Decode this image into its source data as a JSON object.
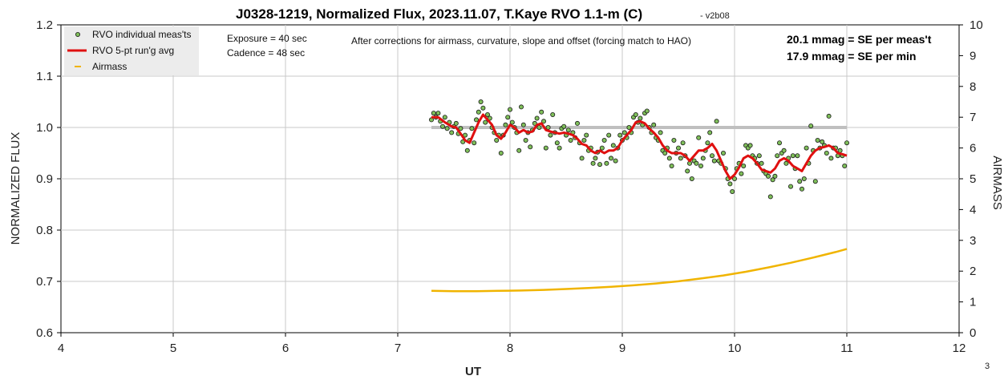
{
  "chart_data": {
    "type": "line",
    "title": "J0328-1219, Normalized Flux, 2023.11.07, T.Kaye RVO 1.1-m (C)",
    "title_suffix": "- v2b08",
    "xlabel": "UT",
    "ylabel": "NORMALIZED FLUX",
    "y2label": "AIRMASS",
    "xlim": [
      4,
      12
    ],
    "ylim": [
      0.6,
      1.2
    ],
    "y2lim": [
      0,
      10
    ],
    "xticks": [
      "4",
      "5",
      "6",
      "7",
      "8",
      "9",
      "10",
      "11",
      "12"
    ],
    "yticks": [
      "0.6",
      "0.7",
      "0.8",
      "0.9",
      "1.0",
      "1.1",
      "1.2"
    ],
    "y2ticks": [
      "0",
      "1",
      "2",
      "3",
      "4",
      "5",
      "6",
      "7",
      "8",
      "9",
      "10"
    ],
    "grid": true,
    "legend_placement": "top-left",
    "annotations": {
      "exposure": "Exposure = 40 sec",
      "cadence": "Cadence = 48 sec",
      "corrections": "After corrections for airmass, curvature, slope and offset (forcing match to HAO)",
      "se_meas": "20.1 mmag = SE per meas't",
      "se_min": "17.9 mmag = SE per min",
      "corner_label": "3"
    },
    "reference_line": {
      "y": 1.0,
      "x_range": [
        7.3,
        11.0
      ],
      "color": "#bfbfbf"
    },
    "series": [
      {
        "name": "RVO individual meas'ts",
        "kind": "scatter",
        "color": "#7fbf5a",
        "points": [
          [
            7.3,
            1.015
          ],
          [
            7.32,
            1.028
          ],
          [
            7.34,
            1.02
          ],
          [
            7.36,
            1.028
          ],
          [
            7.38,
            1.012
          ],
          [
            7.4,
            1.002
          ],
          [
            7.42,
            1.02
          ],
          [
            7.44,
            0.998
          ],
          [
            7.46,
            1.01
          ],
          [
            7.48,
            0.99
          ],
          [
            7.5,
            1.002
          ],
          [
            7.52,
            1.008
          ],
          [
            7.54,
            0.988
          ],
          [
            7.56,
            0.998
          ],
          [
            7.58,
            0.972
          ],
          [
            7.6,
            0.985
          ],
          [
            7.62,
            0.955
          ],
          [
            7.64,
            0.975
          ],
          [
            7.66,
            0.998
          ],
          [
            7.68,
            0.97
          ],
          [
            7.7,
            1.015
          ],
          [
            7.72,
            1.03
          ],
          [
            7.74,
            1.05
          ],
          [
            7.76,
            1.038
          ],
          [
            7.78,
            1.01
          ],
          [
            7.8,
            1.025
          ],
          [
            7.82,
            1.018
          ],
          [
            7.84,
            1.0
          ],
          [
            7.86,
            0.99
          ],
          [
            7.88,
            0.975
          ],
          [
            7.9,
            0.985
          ],
          [
            7.92,
            0.95
          ],
          [
            7.94,
            0.985
          ],
          [
            7.96,
            1.005
          ],
          [
            7.98,
            1.02
          ],
          [
            8.0,
            1.035
          ],
          [
            8.02,
            1.01
          ],
          [
            8.04,
            1.0
          ],
          [
            8.06,
            0.99
          ],
          [
            8.08,
            0.955
          ],
          [
            8.1,
            1.04
          ],
          [
            8.12,
            1.005
          ],
          [
            8.14,
            0.975
          ],
          [
            8.16,
            0.99
          ],
          [
            8.18,
            0.962
          ],
          [
            8.2,
            0.995
          ],
          [
            8.22,
            1.008
          ],
          [
            8.24,
            1.018
          ],
          [
            8.26,
            1.0
          ],
          [
            8.28,
            1.03
          ],
          [
            8.3,
            1.012
          ],
          [
            8.32,
            0.96
          ],
          [
            8.34,
            1.0
          ],
          [
            8.36,
            0.985
          ],
          [
            8.38,
            1.025
          ],
          [
            8.4,
            0.99
          ],
          [
            8.42,
            0.97
          ],
          [
            8.44,
            0.96
          ],
          [
            8.46,
            0.998
          ],
          [
            8.48,
            1.002
          ],
          [
            8.5,
            0.985
          ],
          [
            8.52,
            0.995
          ],
          [
            8.54,
            0.975
          ],
          [
            8.56,
            0.99
          ],
          [
            8.58,
            0.98
          ],
          [
            8.6,
            1.008
          ],
          [
            8.62,
            0.97
          ],
          [
            8.64,
            0.94
          ],
          [
            8.66,
            0.975
          ],
          [
            8.68,
            0.985
          ],
          [
            8.7,
            0.955
          ],
          [
            8.72,
            0.96
          ],
          [
            8.74,
            0.93
          ],
          [
            8.76,
            0.94
          ],
          [
            8.78,
            0.952
          ],
          [
            8.8,
            0.928
          ],
          [
            8.82,
            0.96
          ],
          [
            8.84,
            0.975
          ],
          [
            8.86,
            0.93
          ],
          [
            8.88,
            0.985
          ],
          [
            8.9,
            0.94
          ],
          [
            8.92,
            0.965
          ],
          [
            8.94,
            0.935
          ],
          [
            8.96,
            0.96
          ],
          [
            8.98,
            0.985
          ],
          [
            9.0,
            0.975
          ],
          [
            9.02,
            0.99
          ],
          [
            9.04,
            0.98
          ],
          [
            9.06,
            1.0
          ],
          [
            9.08,
            0.99
          ],
          [
            9.1,
            1.02
          ],
          [
            9.12,
            1.025
          ],
          [
            9.14,
            1.01
          ],
          [
            9.16,
            1.018
          ],
          [
            9.18,
            1.005
          ],
          [
            9.2,
            1.028
          ],
          [
            9.22,
            1.032
          ],
          [
            9.24,
            1.0
          ],
          [
            9.26,
            0.99
          ],
          [
            9.28,
            1.005
          ],
          [
            9.3,
            0.98
          ],
          [
            9.32,
            0.975
          ],
          [
            9.34,
            0.99
          ],
          [
            9.36,
            0.955
          ],
          [
            9.38,
            0.95
          ],
          [
            9.4,
            0.96
          ],
          [
            9.42,
            0.94
          ],
          [
            9.44,
            0.925
          ],
          [
            9.46,
            0.975
          ],
          [
            9.48,
            0.95
          ],
          [
            9.5,
            0.96
          ],
          [
            9.52,
            0.94
          ],
          [
            9.54,
            0.97
          ],
          [
            9.56,
            0.945
          ],
          [
            9.58,
            0.915
          ],
          [
            9.6,
            0.93
          ],
          [
            9.62,
            0.9
          ],
          [
            9.64,
            0.935
          ],
          [
            9.66,
            0.93
          ],
          [
            9.68,
            0.98
          ],
          [
            9.7,
            0.925
          ],
          [
            9.72,
            0.94
          ],
          [
            9.74,
            0.955
          ],
          [
            9.76,
            0.97
          ],
          [
            9.78,
            0.99
          ],
          [
            9.8,
            0.945
          ],
          [
            9.82,
            0.935
          ],
          [
            9.84,
            1.012
          ],
          [
            9.86,
            0.935
          ],
          [
            9.88,
            0.93
          ],
          [
            9.9,
            0.95
          ],
          [
            9.92,
            0.92
          ],
          [
            9.94,
            0.9
          ],
          [
            9.96,
            0.89
          ],
          [
            9.98,
            0.875
          ],
          [
            10.0,
            0.9
          ],
          [
            10.02,
            0.92
          ],
          [
            10.04,
            0.93
          ],
          [
            10.06,
            0.91
          ],
          [
            10.08,
            0.925
          ],
          [
            10.1,
            0.965
          ],
          [
            10.12,
            0.96
          ],
          [
            10.14,
            0.965
          ],
          [
            10.16,
            0.945
          ],
          [
            10.18,
            0.94
          ],
          [
            10.2,
            0.93
          ],
          [
            10.22,
            0.945
          ],
          [
            10.24,
            0.93
          ],
          [
            10.26,
            0.915
          ],
          [
            10.28,
            0.91
          ],
          [
            10.3,
            0.905
          ],
          [
            10.32,
            0.865
          ],
          [
            10.34,
            0.898
          ],
          [
            10.36,
            0.905
          ],
          [
            10.38,
            0.945
          ],
          [
            10.4,
            0.97
          ],
          [
            10.42,
            0.95
          ],
          [
            10.44,
            0.955
          ],
          [
            10.46,
            0.93
          ],
          [
            10.48,
            0.94
          ],
          [
            10.5,
            0.885
          ],
          [
            10.52,
            0.945
          ],
          [
            10.54,
            0.92
          ],
          [
            10.56,
            0.945
          ],
          [
            10.58,
            0.895
          ],
          [
            10.6,
            0.88
          ],
          [
            10.62,
            0.9
          ],
          [
            10.64,
            0.96
          ],
          [
            10.66,
            0.93
          ],
          [
            10.68,
            1.003
          ],
          [
            10.7,
            0.955
          ],
          [
            10.72,
            0.895
          ],
          [
            10.74,
            0.975
          ],
          [
            10.76,
            0.96
          ],
          [
            10.78,
            0.972
          ],
          [
            10.8,
            0.965
          ],
          [
            10.82,
            0.95
          ],
          [
            10.84,
            1.022
          ],
          [
            10.86,
            0.94
          ],
          [
            10.88,
            0.96
          ],
          [
            10.9,
            0.96
          ],
          [
            10.92,
            0.945
          ],
          [
            10.94,
            0.955
          ],
          [
            10.96,
            0.945
          ],
          [
            10.98,
            0.925
          ],
          [
            11.0,
            0.97
          ]
        ]
      },
      {
        "name": "RVO 5-pt run'g avg",
        "kind": "line",
        "color": "#e01010",
        "points": [
          [
            7.3,
            1.02
          ],
          [
            7.36,
            1.02
          ],
          [
            7.42,
            1.01
          ],
          [
            7.48,
            1.002
          ],
          [
            7.52,
            1.0
          ],
          [
            7.56,
            0.988
          ],
          [
            7.6,
            0.975
          ],
          [
            7.64,
            0.97
          ],
          [
            7.68,
            0.99
          ],
          [
            7.72,
            1.01
          ],
          [
            7.76,
            1.025
          ],
          [
            7.8,
            1.015
          ],
          [
            7.84,
            1.005
          ],
          [
            7.88,
            0.985
          ],
          [
            7.92,
            0.978
          ],
          [
            7.96,
            0.99
          ],
          [
            8.0,
            1.005
          ],
          [
            8.04,
            1.0
          ],
          [
            8.08,
            0.99
          ],
          [
            8.12,
            0.995
          ],
          [
            8.16,
            0.99
          ],
          [
            8.2,
            0.992
          ],
          [
            8.24,
            1.005
          ],
          [
            8.28,
            1.008
          ],
          [
            8.32,
            0.995
          ],
          [
            8.36,
            0.992
          ],
          [
            8.4,
            0.99
          ],
          [
            8.44,
            0.988
          ],
          [
            8.48,
            0.99
          ],
          [
            8.52,
            0.988
          ],
          [
            8.56,
            0.985
          ],
          [
            8.6,
            0.978
          ],
          [
            8.64,
            0.968
          ],
          [
            8.68,
            0.965
          ],
          [
            8.72,
            0.955
          ],
          [
            8.76,
            0.95
          ],
          [
            8.8,
            0.955
          ],
          [
            8.84,
            0.95
          ],
          [
            8.88,
            0.955
          ],
          [
            8.92,
            0.955
          ],
          [
            8.96,
            0.96
          ],
          [
            9.0,
            0.975
          ],
          [
            9.04,
            0.985
          ],
          [
            9.08,
            0.995
          ],
          [
            9.12,
            1.01
          ],
          [
            9.16,
            1.012
          ],
          [
            9.2,
            1.008
          ],
          [
            9.24,
            0.998
          ],
          [
            9.28,
            0.99
          ],
          [
            9.32,
            0.98
          ],
          [
            9.36,
            0.965
          ],
          [
            9.4,
            0.955
          ],
          [
            9.44,
            0.95
          ],
          [
            9.48,
            0.95
          ],
          [
            9.52,
            0.95
          ],
          [
            9.56,
            0.945
          ],
          [
            9.6,
            0.935
          ],
          [
            9.64,
            0.945
          ],
          [
            9.68,
            0.955
          ],
          [
            9.72,
            0.955
          ],
          [
            9.76,
            0.96
          ],
          [
            9.8,
            0.968
          ],
          [
            9.84,
            0.955
          ],
          [
            9.88,
            0.935
          ],
          [
            9.92,
            0.915
          ],
          [
            9.96,
            0.9
          ],
          [
            10.0,
            0.908
          ],
          [
            10.04,
            0.922
          ],
          [
            10.08,
            0.94
          ],
          [
            10.12,
            0.945
          ],
          [
            10.16,
            0.94
          ],
          [
            10.2,
            0.93
          ],
          [
            10.24,
            0.918
          ],
          [
            10.28,
            0.915
          ],
          [
            10.32,
            0.912
          ],
          [
            10.36,
            0.92
          ],
          [
            10.4,
            0.935
          ],
          [
            10.44,
            0.94
          ],
          [
            10.48,
            0.935
          ],
          [
            10.52,
            0.925
          ],
          [
            10.56,
            0.92
          ],
          [
            10.6,
            0.915
          ],
          [
            10.64,
            0.93
          ],
          [
            10.68,
            0.945
          ],
          [
            10.72,
            0.955
          ],
          [
            10.76,
            0.96
          ],
          [
            10.8,
            0.962
          ],
          [
            10.84,
            0.965
          ],
          [
            10.88,
            0.96
          ],
          [
            10.92,
            0.95
          ],
          [
            10.96,
            0.948
          ],
          [
            11.0,
            0.945
          ]
        ]
      },
      {
        "name": "Airmass",
        "kind": "line",
        "axis": "y2",
        "color": "#f0b400",
        "points": [
          [
            7.3,
            1.36
          ],
          [
            7.5,
            1.35
          ],
          [
            7.7,
            1.35
          ],
          [
            7.9,
            1.36
          ],
          [
            8.1,
            1.37
          ],
          [
            8.3,
            1.39
          ],
          [
            8.5,
            1.42
          ],
          [
            8.7,
            1.45
          ],
          [
            8.9,
            1.49
          ],
          [
            9.1,
            1.54
          ],
          [
            9.3,
            1.6
          ],
          [
            9.5,
            1.67
          ],
          [
            9.7,
            1.76
          ],
          [
            9.9,
            1.86
          ],
          [
            10.1,
            1.98
          ],
          [
            10.3,
            2.12
          ],
          [
            10.5,
            2.27
          ],
          [
            10.7,
            2.44
          ],
          [
            10.9,
            2.62
          ],
          [
            11.0,
            2.72
          ]
        ]
      }
    ]
  }
}
